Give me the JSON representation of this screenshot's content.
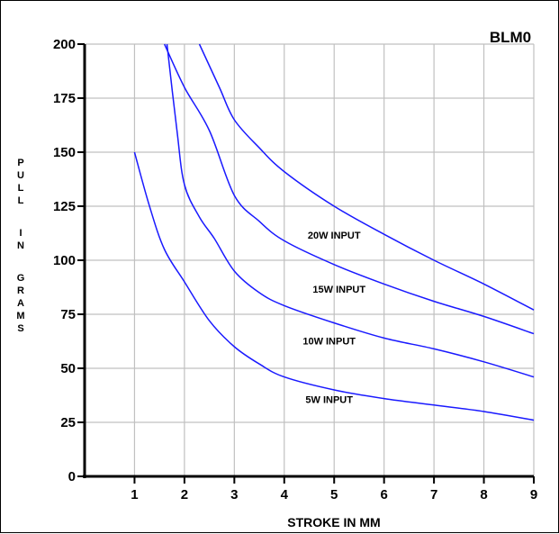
{
  "chart_data": {
    "type": "line",
    "title": "BLM0",
    "xlabel": "STROKE IN MM",
    "ylabel": "PULL IN GRAMS",
    "xlim": [
      0,
      9
    ],
    "ylim": [
      0,
      200
    ],
    "x_ticks": [
      1,
      2,
      3,
      4,
      5,
      6,
      7,
      8,
      9
    ],
    "y_ticks": [
      0,
      25,
      50,
      75,
      100,
      125,
      150,
      175,
      200
    ],
    "grid": true,
    "line_color": "#1a1aff",
    "grid_color": "#c0c0c0",
    "series": [
      {
        "name": "5W INPUT",
        "points": [
          [
            1.0,
            150
          ],
          [
            1.3,
            125
          ],
          [
            1.6,
            105
          ],
          [
            2.0,
            90
          ],
          [
            2.5,
            72
          ],
          [
            3.0,
            60
          ],
          [
            3.5,
            52
          ],
          [
            4.0,
            46
          ],
          [
            5.0,
            40
          ],
          [
            6.0,
            36
          ],
          [
            7.0,
            33
          ],
          [
            8.0,
            30
          ],
          [
            9.0,
            26
          ]
        ]
      },
      {
        "name": "10W INPUT",
        "points": [
          [
            1.65,
            200
          ],
          [
            1.85,
            160
          ],
          [
            2.0,
            135
          ],
          [
            2.3,
            120
          ],
          [
            2.6,
            110
          ],
          [
            3.0,
            95
          ],
          [
            3.5,
            85
          ],
          [
            4.0,
            79
          ],
          [
            5.0,
            71
          ],
          [
            6.0,
            64
          ],
          [
            7.0,
            59
          ],
          [
            8.0,
            53
          ],
          [
            9.0,
            46
          ]
        ]
      },
      {
        "name": "15W INPUT",
        "points": [
          [
            1.6,
            200
          ],
          [
            2.0,
            180
          ],
          [
            2.5,
            160
          ],
          [
            3.0,
            130
          ],
          [
            3.5,
            118
          ],
          [
            4.0,
            109
          ],
          [
            5.0,
            98
          ],
          [
            6.0,
            89
          ],
          [
            7.0,
            81
          ],
          [
            8.0,
            74
          ],
          [
            9.0,
            66
          ]
        ]
      },
      {
        "name": "20W INPUT",
        "points": [
          [
            2.3,
            200
          ],
          [
            2.7,
            180
          ],
          [
            3.0,
            165
          ],
          [
            3.5,
            152
          ],
          [
            4.0,
            141
          ],
          [
            5.0,
            125
          ],
          [
            6.0,
            112
          ],
          [
            7.0,
            100
          ],
          [
            8.0,
            89
          ],
          [
            9.0,
            77
          ]
        ]
      }
    ]
  }
}
